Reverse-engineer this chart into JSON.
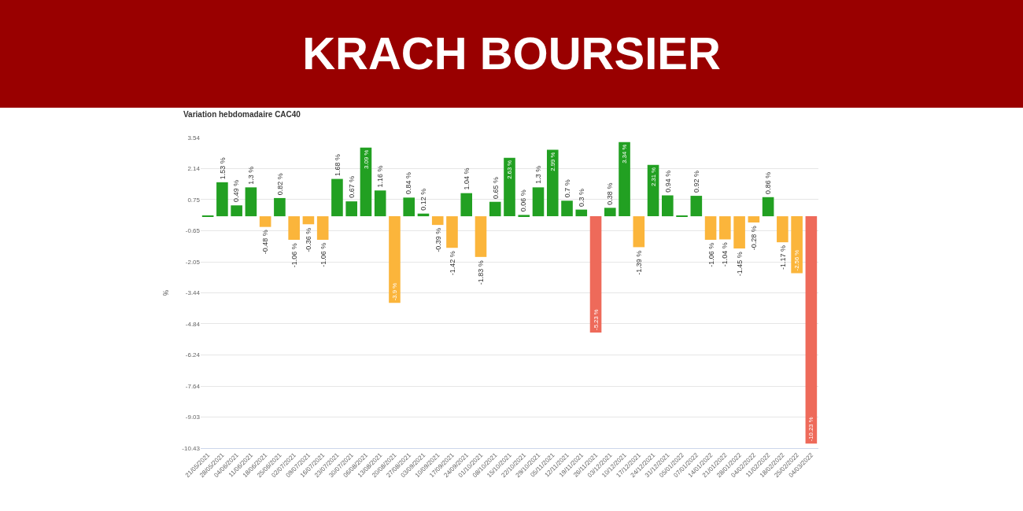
{
  "chart_data": {
    "type": "bar",
    "title": "KRACH BOURSIER",
    "subtitle": "Variation hebdomadaire CAC40",
    "ylabel": "%",
    "categories": [
      "21/05/2021",
      "28/05/2021",
      "04/06/2021",
      "11/06/2021",
      "18/06/2021",
      "25/06/2021",
      "02/07/2021",
      "09/07/2021",
      "16/07/2021",
      "23/07/2021",
      "30/07/2021",
      "06/08/2021",
      "13/08/2021",
      "20/08/2021",
      "27/08/2021",
      "03/09/2021",
      "10/09/2021",
      "17/09/2021",
      "24/09/2021",
      "01/10/2021",
      "08/10/2021",
      "15/10/2021",
      "22/10/2021",
      "29/10/2021",
      "05/11/2021",
      "12/11/2021",
      "19/11/2021",
      "26/11/2021",
      "03/12/2021",
      "10/12/2021",
      "17/12/2021",
      "24/12/2021",
      "31/12/2021",
      "05/01/2022",
      "07/01/2022",
      "14/01/2022",
      "21/01/2022",
      "28/01/2022",
      "04/02/2022",
      "11/02/2022",
      "18/02/2022",
      "25/02/2022",
      "04/03/2022"
    ],
    "values": [
      0.02,
      1.53,
      0.49,
      1.3,
      -0.48,
      0.82,
      -1.06,
      -0.36,
      -1.06,
      1.68,
      0.67,
      3.09,
      1.16,
      -3.9,
      0.84,
      0.12,
      -0.39,
      -1.42,
      1.04,
      -1.83,
      0.65,
      2.63,
      0.06,
      1.3,
      2.99,
      0.7,
      0.3,
      -5.23,
      0.38,
      3.34,
      -1.39,
      2.31,
      0.94,
      0.02,
      0.92,
      -1.06,
      -1.04,
      -1.45,
      -0.28,
      0.86,
      -1.17,
      -2.56,
      -10.23
    ],
    "value_labels": [
      null,
      "1.53 %",
      "0.49 %",
      "1.3 %",
      "-0.48 %",
      "0.82 %",
      "-1.06 %",
      "-0.36 %",
      "-1.06 %",
      "1.68 %",
      "0.67 %",
      "3.09 %",
      "1.16 %",
      "-3.9 %",
      "0.84 %",
      "0.12 %",
      "-0.39 %",
      "-1.42 %",
      "1.04 %",
      "-1.83 %",
      "0.65 %",
      "2.63 %",
      "0.06 %",
      "1.3 %",
      "2.99 %",
      "0.7 %",
      "0.3 %",
      "-5.23 %",
      "0.38 %",
      "3.34 %",
      "-1.39 %",
      "2.31 %",
      "0.94 %",
      null,
      "0.92 %",
      "-1.06 %",
      "-1.04 %",
      "-1.45 %",
      "-0.28 %",
      "0.86 %",
      "-1.17 %",
      "-2.56 %",
      "-10.23 %"
    ],
    "colors": [
      "#22a022",
      "#22a022",
      "#22a022",
      "#22a022",
      "#fbb53b",
      "#22a022",
      "#fbb53b",
      "#fbb53b",
      "#fbb53b",
      "#22a022",
      "#22a022",
      "#22a022",
      "#22a022",
      "#fbb53b",
      "#22a022",
      "#22a022",
      "#fbb53b",
      "#fbb53b",
      "#22a022",
      "#fbb53b",
      "#22a022",
      "#22a022",
      "#22a022",
      "#22a022",
      "#22a022",
      "#22a022",
      "#22a022",
      "#ee6a5a",
      "#22a022",
      "#22a022",
      "#fbb53b",
      "#22a022",
      "#22a022",
      "#22a022",
      "#22a022",
      "#fbb53b",
      "#fbb53b",
      "#fbb53b",
      "#fbb53b",
      "#22a022",
      "#fbb53b",
      "#fbb53b",
      "#ee6a5a"
    ],
    "ylim": [
      -10.43,
      3.54
    ],
    "yticks": [
      3.54,
      2.14,
      0.75,
      -0.65,
      -2.05,
      -3.44,
      -4.84,
      -6.24,
      -7.64,
      -9.03,
      -10.43
    ],
    "grid": "y",
    "legend": false
  }
}
